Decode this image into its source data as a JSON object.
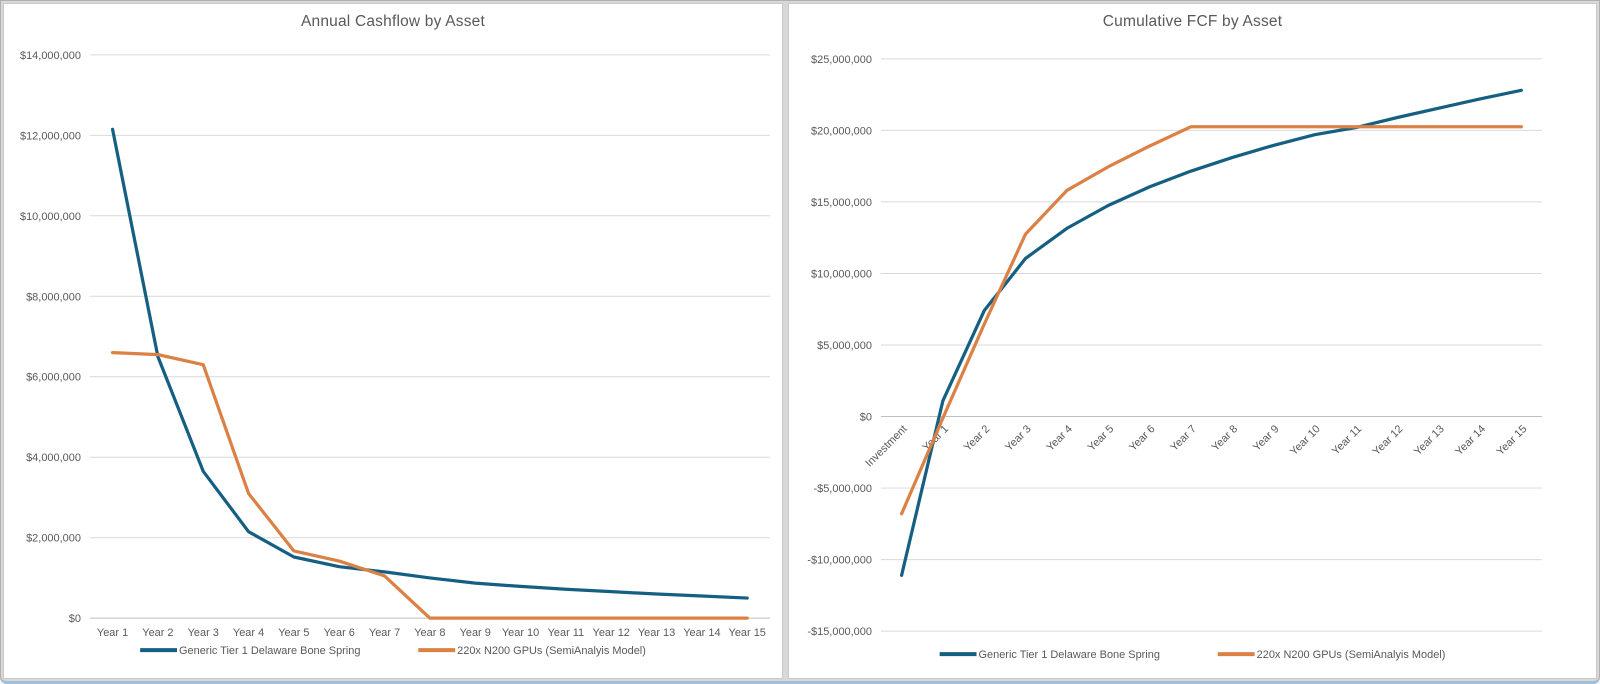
{
  "window": {
    "background_color": "#ffffff",
    "frame_color": "#d8d8d8",
    "bottom_edge_color": "#a3bdd6"
  },
  "colors": {
    "series_teal": "#156082",
    "series_orange": "#DC8145",
    "gridline": "#d9d9d9",
    "zero_axis": "#bfbfbf",
    "tick_text": "#595959",
    "title_text": "#595959"
  },
  "chart_data": [
    {
      "type": "line",
      "title": "Annual Cashflow by Asset",
      "xlabel": "",
      "ylabel": "",
      "grid": true,
      "legend_position": "bottom",
      "x_label_rotation": 0,
      "categories": [
        "Year 1",
        "Year 2",
        "Year 3",
        "Year 4",
        "Year 5",
        "Year 6",
        "Year 7",
        "Year 8",
        "Year 9",
        "Year 10",
        "Year 11",
        "Year 12",
        "Year 13",
        "Year 14",
        "Year 15"
      ],
      "series": [
        {
          "name": "Generic Tier 1 Delaware Bone Spring",
          "color": "#156082",
          "values": [
            12150000,
            6500000,
            3650000,
            2150000,
            1520000,
            1280000,
            1150000,
            1000000,
            870000,
            790000,
            720000,
            660000,
            600000,
            550000,
            500000
          ]
        },
        {
          "name": "220x N200 GPUs (SemiAnalyis Model)",
          "color": "#DC8145",
          "values": [
            6600000,
            6550000,
            6300000,
            3100000,
            1670000,
            1420000,
            1050000,
            0,
            0,
            0,
            0,
            0,
            0,
            0,
            0
          ]
        }
      ],
      "y_axis": {
        "min": 0,
        "max": 14000000,
        "step": 2000000,
        "format": "currency",
        "tick_labels": [
          "$14,000,000",
          "$12,000,000",
          "$10,000,000",
          "$8,000,000",
          "$6,000,000",
          "$4,000,000",
          "$2,000,000",
          "$0"
        ]
      }
    },
    {
      "type": "line",
      "title": "Cumulative FCF by Asset",
      "xlabel": "",
      "ylabel": "",
      "grid": true,
      "legend_position": "bottom",
      "x_label_rotation": -45,
      "categories": [
        "Investment",
        "Year 1",
        "Year 2",
        "Year 3",
        "Year 4",
        "Year 5",
        "Year 6",
        "Year 7",
        "Year 8",
        "Year 9",
        "Year 10",
        "Year 11",
        "Year 12",
        "Year 13",
        "Year 14",
        "Year 15"
      ],
      "series": [
        {
          "name": "Generic Tier 1 Delaware Bone Spring",
          "color": "#156082",
          "values": [
            -11100000,
            1100000,
            7400000,
            11050000,
            13150000,
            14750000,
            16050000,
            17150000,
            18100000,
            18950000,
            19700000,
            20200000,
            20900000,
            21550000,
            22200000,
            22800000
          ]
        },
        {
          "name": "220x N200 GPUs (SemiAnalyis Model)",
          "color": "#DC8145",
          "values": [
            -6800000,
            -100000,
            6450000,
            12750000,
            15800000,
            17450000,
            18900000,
            20250000,
            20250000,
            20250000,
            20250000,
            20250000,
            20250000,
            20250000,
            20250000,
            20250000
          ]
        }
      ],
      "y_axis": {
        "min": -15000000,
        "max": 25000000,
        "step": 5000000,
        "format": "currency",
        "tick_labels": [
          "$25,000,000",
          "$20,000,000",
          "$15,000,000",
          "$10,000,000",
          "$5,000,000",
          "$0",
          "-$5,000,000",
          "-$10,000,000",
          "-$15,000,000"
        ]
      }
    }
  ]
}
